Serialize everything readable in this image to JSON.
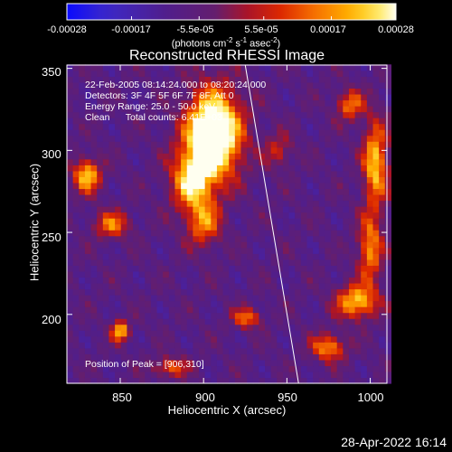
{
  "colorbar": {
    "ticks": [
      "-0.00028",
      "-0.00017",
      "-5.5e-05",
      "5.5e-05",
      "0.00017",
      "0.00028"
    ],
    "tick_values": [
      -0.00028,
      -0.00017,
      -5.5e-05,
      5.5e-05,
      0.00017,
      0.00028
    ],
    "range": [
      -0.00028,
      0.00028
    ],
    "units_prefix": "(photons cm",
    "units_exp1": "-2",
    "units_mid": " s",
    "units_exp2": "-1",
    "units_mid2": " asec",
    "units_exp3": "-2",
    "units_suffix": ")"
  },
  "chart_data": {
    "type": "heatmap",
    "title": "Reconstructed RHESSI Image",
    "xlabel": "Heliocentric X (arcsec)",
    "ylabel": "Heliocentric Y (arcsec)",
    "xlim": [
      818,
      1010
    ],
    "ylim": [
      158,
      352
    ],
    "xticks": [
      850,
      900,
      950,
      1000
    ],
    "yticks": [
      200,
      250,
      300,
      350
    ],
    "colormap": "rainbow-to-hot (blue-purple-red-orange-yellow-white)",
    "peak": [
      906,
      310
    ],
    "limb_line": [
      [
        925,
        352
      ],
      [
        957,
        158
      ]
    ],
    "annotations": {
      "line1": "22-Feb-2005 08:14:24.000 to 08:20:24.000",
      "line2": "Detectors: 3F 4F 5F 6F 7F 8F, Att 0",
      "line3": "Energy Range: 25.0 - 50.0 keV",
      "line4": "Clean      Total counts: 6.41E+03",
      "peak_text": "Position of Peak = [906,310]"
    }
  },
  "timestamp": "28-Apr-2022 16:14"
}
